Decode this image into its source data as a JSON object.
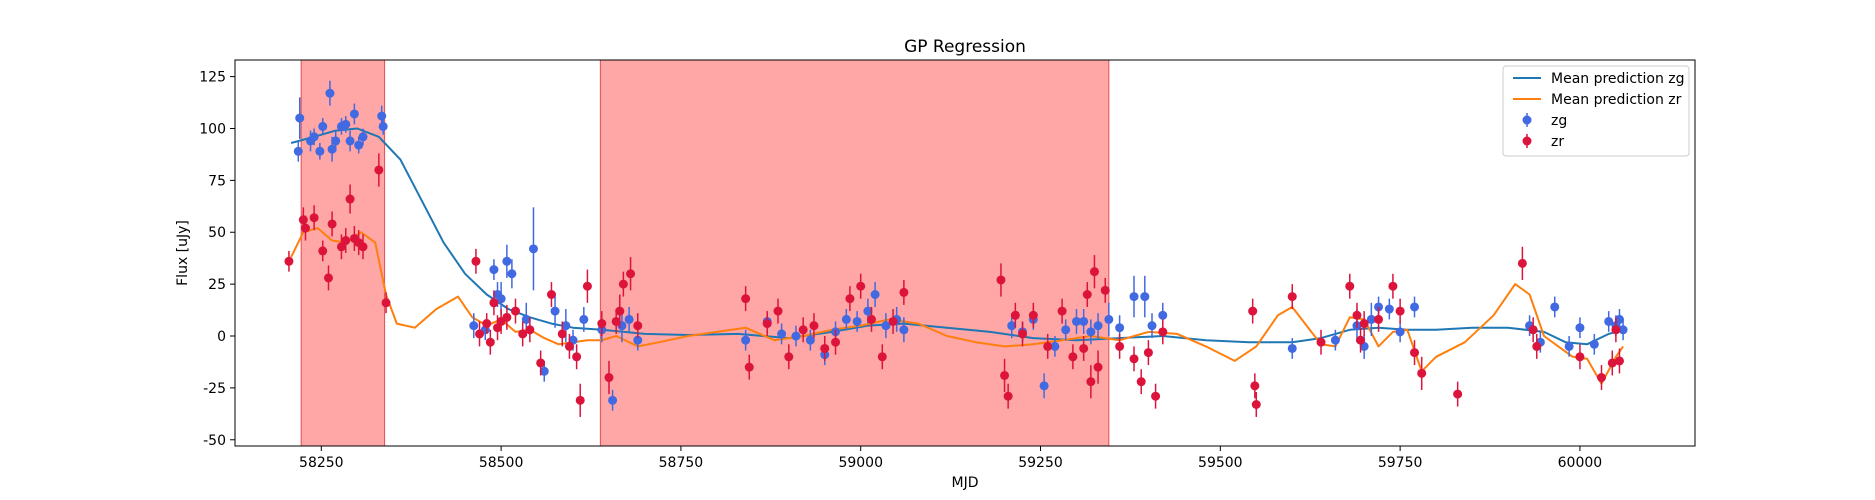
{
  "chart_data": {
    "type": "scatter",
    "title": "GP Regression",
    "xlabel": "MJD",
    "ylabel": "Flux [uJy]",
    "xlim": [
      58130,
      60160
    ],
    "ylim": [
      -53,
      133
    ],
    "xticks": [
      58250,
      58500,
      58750,
      59000,
      59250,
      59500,
      59750,
      60000
    ],
    "yticks": [
      -50,
      -25,
      0,
      25,
      50,
      75,
      100,
      125
    ],
    "grid": false,
    "legend_position": "top-right",
    "shaded_regions": [
      {
        "x0": 58222,
        "x1": 58338,
        "color": "#ff6b6b"
      },
      {
        "x0": 58638,
        "x1": 59345,
        "color": "#ff6b6b"
      }
    ],
    "colors": {
      "zg_line": "#1f77b4",
      "zr_line": "#ff7f0e",
      "zg_points": "#4169e1",
      "zr_points": "#dc143c"
    },
    "series": [
      {
        "name": "Mean prediction zg",
        "kind": "line",
        "x": [
          58208,
          58240,
          58270,
          58300,
          58330,
          58360,
          58390,
          58420,
          58450,
          58480,
          58510,
          58540,
          58570,
          58600,
          58640,
          58700,
          58760,
          58830,
          58900,
          58960,
          59010,
          59060,
          59120,
          59180,
          59240,
          59300,
          59360,
          59420,
          59480,
          59540,
          59600,
          59640,
          59680,
          59720,
          59760,
          59800,
          59850,
          59900,
          59950,
          59980,
          60010,
          60040,
          60060
        ],
        "y": [
          93,
          96,
          99,
          100,
          96,
          85,
          65,
          45,
          30,
          20,
          13,
          9,
          6,
          4,
          3,
          1,
          0.5,
          1,
          -1,
          2,
          5,
          6,
          4,
          2,
          -1,
          -2,
          -1,
          0,
          -2,
          -3,
          -3,
          -1,
          3,
          4,
          3,
          3,
          4,
          4,
          2,
          -3,
          -4,
          1,
          3
        ]
      },
      {
        "name": "Mean prediction zr",
        "kind": "line",
        "x": [
          58208,
          58225,
          58245,
          58265,
          58285,
          58305,
          58325,
          58340,
          58355,
          58380,
          58410,
          58440,
          58460,
          58480,
          58500,
          58520,
          58540,
          58560,
          58580,
          58600,
          58620,
          58640,
          58660,
          58690,
          58720,
          58760,
          58800,
          58840,
          58880,
          58920,
          58960,
          59000,
          59040,
          59080,
          59120,
          59160,
          59200,
          59240,
          59280,
          59320,
          59360,
          59400,
          59440,
          59480,
          59520,
          59550,
          59580,
          59600,
          59620,
          59640,
          59660,
          59680,
          59700,
          59720,
          59740,
          59760,
          59780,
          59800,
          59840,
          59880,
          59910,
          59930,
          59950,
          59970,
          59990,
          60010,
          60030,
          60050,
          60060
        ],
        "y": [
          38,
          50,
          52,
          46,
          45,
          50,
          45,
          20,
          6,
          4,
          13,
          19,
          9,
          5,
          8,
          2,
          3,
          -1,
          -4,
          -3,
          -2,
          -2,
          0,
          -5,
          -3,
          0,
          2,
          4,
          -2,
          0,
          3,
          5,
          8,
          6,
          0,
          -3,
          -5,
          -4,
          -2,
          0,
          -2,
          2,
          1,
          -5,
          -12,
          -5,
          10,
          14,
          5,
          -4,
          -5,
          9,
          8,
          -5,
          2,
          3,
          -17,
          -10,
          -3,
          10,
          25,
          20,
          0,
          -5,
          -10,
          -11,
          -23,
          -10,
          -5
        ]
      },
      {
        "name": "zg",
        "kind": "errorbar",
        "x": [
          58218,
          58220,
          58235,
          58240,
          58248,
          58252,
          58262,
          58265,
          58270,
          58278,
          58284,
          58290,
          58296,
          58302,
          58308,
          58334,
          58336,
          58462,
          58478,
          58490,
          58495,
          58500,
          58508,
          58515,
          58535,
          58545,
          58560,
          58575,
          58590,
          58600,
          58615,
          58640,
          58655,
          58668,
          58678,
          58690,
          58840,
          58870,
          58890,
          58910,
          58930,
          58950,
          58965,
          58980,
          58995,
          59010,
          59020,
          59035,
          59050,
          59060,
          59210,
          59225,
          59240,
          59255,
          59270,
          59285,
          59300,
          59310,
          59320,
          59330,
          59345,
          59360,
          59380,
          59395,
          59405,
          59420,
          59600,
          59660,
          59690,
          59700,
          59710,
          59720,
          59735,
          59750,
          59770,
          59930,
          59945,
          59965,
          59985,
          60000,
          60020,
          60040,
          60050,
          60055,
          60060
        ],
        "y": [
          89,
          105,
          94,
          96,
          89,
          101,
          117,
          90,
          94,
          101,
          102,
          94,
          107,
          92,
          96,
          106,
          101,
          5,
          3,
          32,
          20,
          18,
          36,
          30,
          8,
          42,
          -17,
          12,
          5,
          -2,
          8,
          3,
          -31,
          5,
          8,
          -2,
          -2,
          7,
          1,
          0,
          -2,
          -9,
          2,
          8,
          7,
          12,
          20,
          5,
          8,
          3,
          5,
          2,
          8,
          -24,
          -5,
          3,
          7,
          7,
          2,
          5,
          8,
          4,
          19,
          19,
          5,
          10,
          -6,
          -2,
          5,
          -5,
          8,
          14,
          13,
          2,
          14,
          5,
          -3,
          14,
          -5,
          4,
          -4,
          7,
          5,
          8,
          3
        ],
        "err": [
          5,
          10,
          5,
          4,
          4,
          4,
          6,
          6,
          5,
          4,
          4,
          5,
          5,
          4,
          4,
          5,
          4,
          6,
          5,
          5,
          6,
          8,
          8,
          7,
          8,
          20,
          5,
          8,
          8,
          5,
          6,
          6,
          5,
          8,
          6,
          5,
          5,
          5,
          5,
          5,
          5,
          5,
          5,
          5,
          5,
          6,
          6,
          6,
          6,
          6,
          6,
          5,
          5,
          6,
          5,
          5,
          6,
          6,
          6,
          6,
          8,
          6,
          10,
          10,
          6,
          6,
          5,
          5,
          8,
          6,
          8,
          5,
          5,
          5,
          5,
          5,
          5,
          5,
          5,
          5,
          5,
          5,
          5,
          5,
          5
        ]
      },
      {
        "name": "zr",
        "kind": "errorbar",
        "x": [
          58205,
          58225,
          58228,
          58240,
          58252,
          58260,
          58265,
          58278,
          58284,
          58290,
          58296,
          58302,
          58308,
          58330,
          58340,
          58465,
          58470,
          58480,
          58485,
          58490,
          58495,
          58500,
          58508,
          58520,
          58530,
          58540,
          58555,
          58570,
          58585,
          58595,
          58605,
          58610,
          58620,
          58640,
          58650,
          58660,
          58665,
          58670,
          58680,
          58690,
          58840,
          58845,
          58870,
          58885,
          58900,
          58920,
          58935,
          58950,
          58965,
          58985,
          59000,
          59015,
          59030,
          59045,
          59060,
          59195,
          59200,
          59205,
          59215,
          59225,
          59240,
          59260,
          59280,
          59295,
          59310,
          59315,
          59320,
          59325,
          59330,
          59340,
          59360,
          59380,
          59390,
          59400,
          59410,
          59420,
          59545,
          59548,
          59550,
          59600,
          59640,
          59680,
          59690,
          59695,
          59700,
          59720,
          59740,
          59750,
          59770,
          59780,
          59830,
          59920,
          59935,
          59940,
          60000,
          60030,
          60045,
          60050,
          60055
        ],
        "y": [
          36,
          56,
          52,
          57,
          41,
          28,
          54,
          43,
          46,
          66,
          47,
          45,
          43,
          80,
          16,
          36,
          1,
          6,
          -3,
          16,
          4,
          7,
          9,
          12,
          1,
          3,
          -13,
          20,
          1,
          -5,
          -10,
          -31,
          24,
          6,
          -20,
          7,
          12,
          25,
          30,
          5,
          18,
          -15,
          6,
          12,
          -10,
          3,
          5,
          -6,
          -3,
          18,
          24,
          8,
          -10,
          7,
          21,
          27,
          -19,
          -29,
          10,
          1,
          10,
          -5,
          12,
          -10,
          -6,
          20,
          -22,
          31,
          -15,
          22,
          -5,
          -11,
          -22,
          -8,
          -29,
          2,
          12,
          -24,
          -33,
          19,
          -3,
          24,
          10,
          -2,
          6,
          8,
          24,
          12,
          -8,
          -18,
          -28,
          35,
          3,
          -5,
          -10,
          -20,
          -13,
          3,
          -12
        ],
        "err": [
          5,
          6,
          6,
          6,
          5,
          6,
          6,
          6,
          6,
          7,
          6,
          6,
          6,
          8,
          5,
          6,
          6,
          5,
          6,
          6,
          6,
          6,
          6,
          6,
          6,
          6,
          6,
          6,
          6,
          6,
          6,
          8,
          8,
          6,
          8,
          6,
          8,
          6,
          8,
          6,
          6,
          6,
          6,
          6,
          6,
          6,
          6,
          6,
          6,
          6,
          6,
          6,
          6,
          6,
          6,
          8,
          8,
          6,
          6,
          6,
          6,
          6,
          6,
          6,
          6,
          6,
          8,
          8,
          8,
          6,
          6,
          6,
          6,
          6,
          6,
          6,
          6,
          6,
          6,
          6,
          6,
          6,
          6,
          6,
          6,
          6,
          6,
          6,
          6,
          8,
          6,
          8,
          6,
          6,
          6,
          6,
          6,
          6,
          6
        ]
      }
    ]
  }
}
